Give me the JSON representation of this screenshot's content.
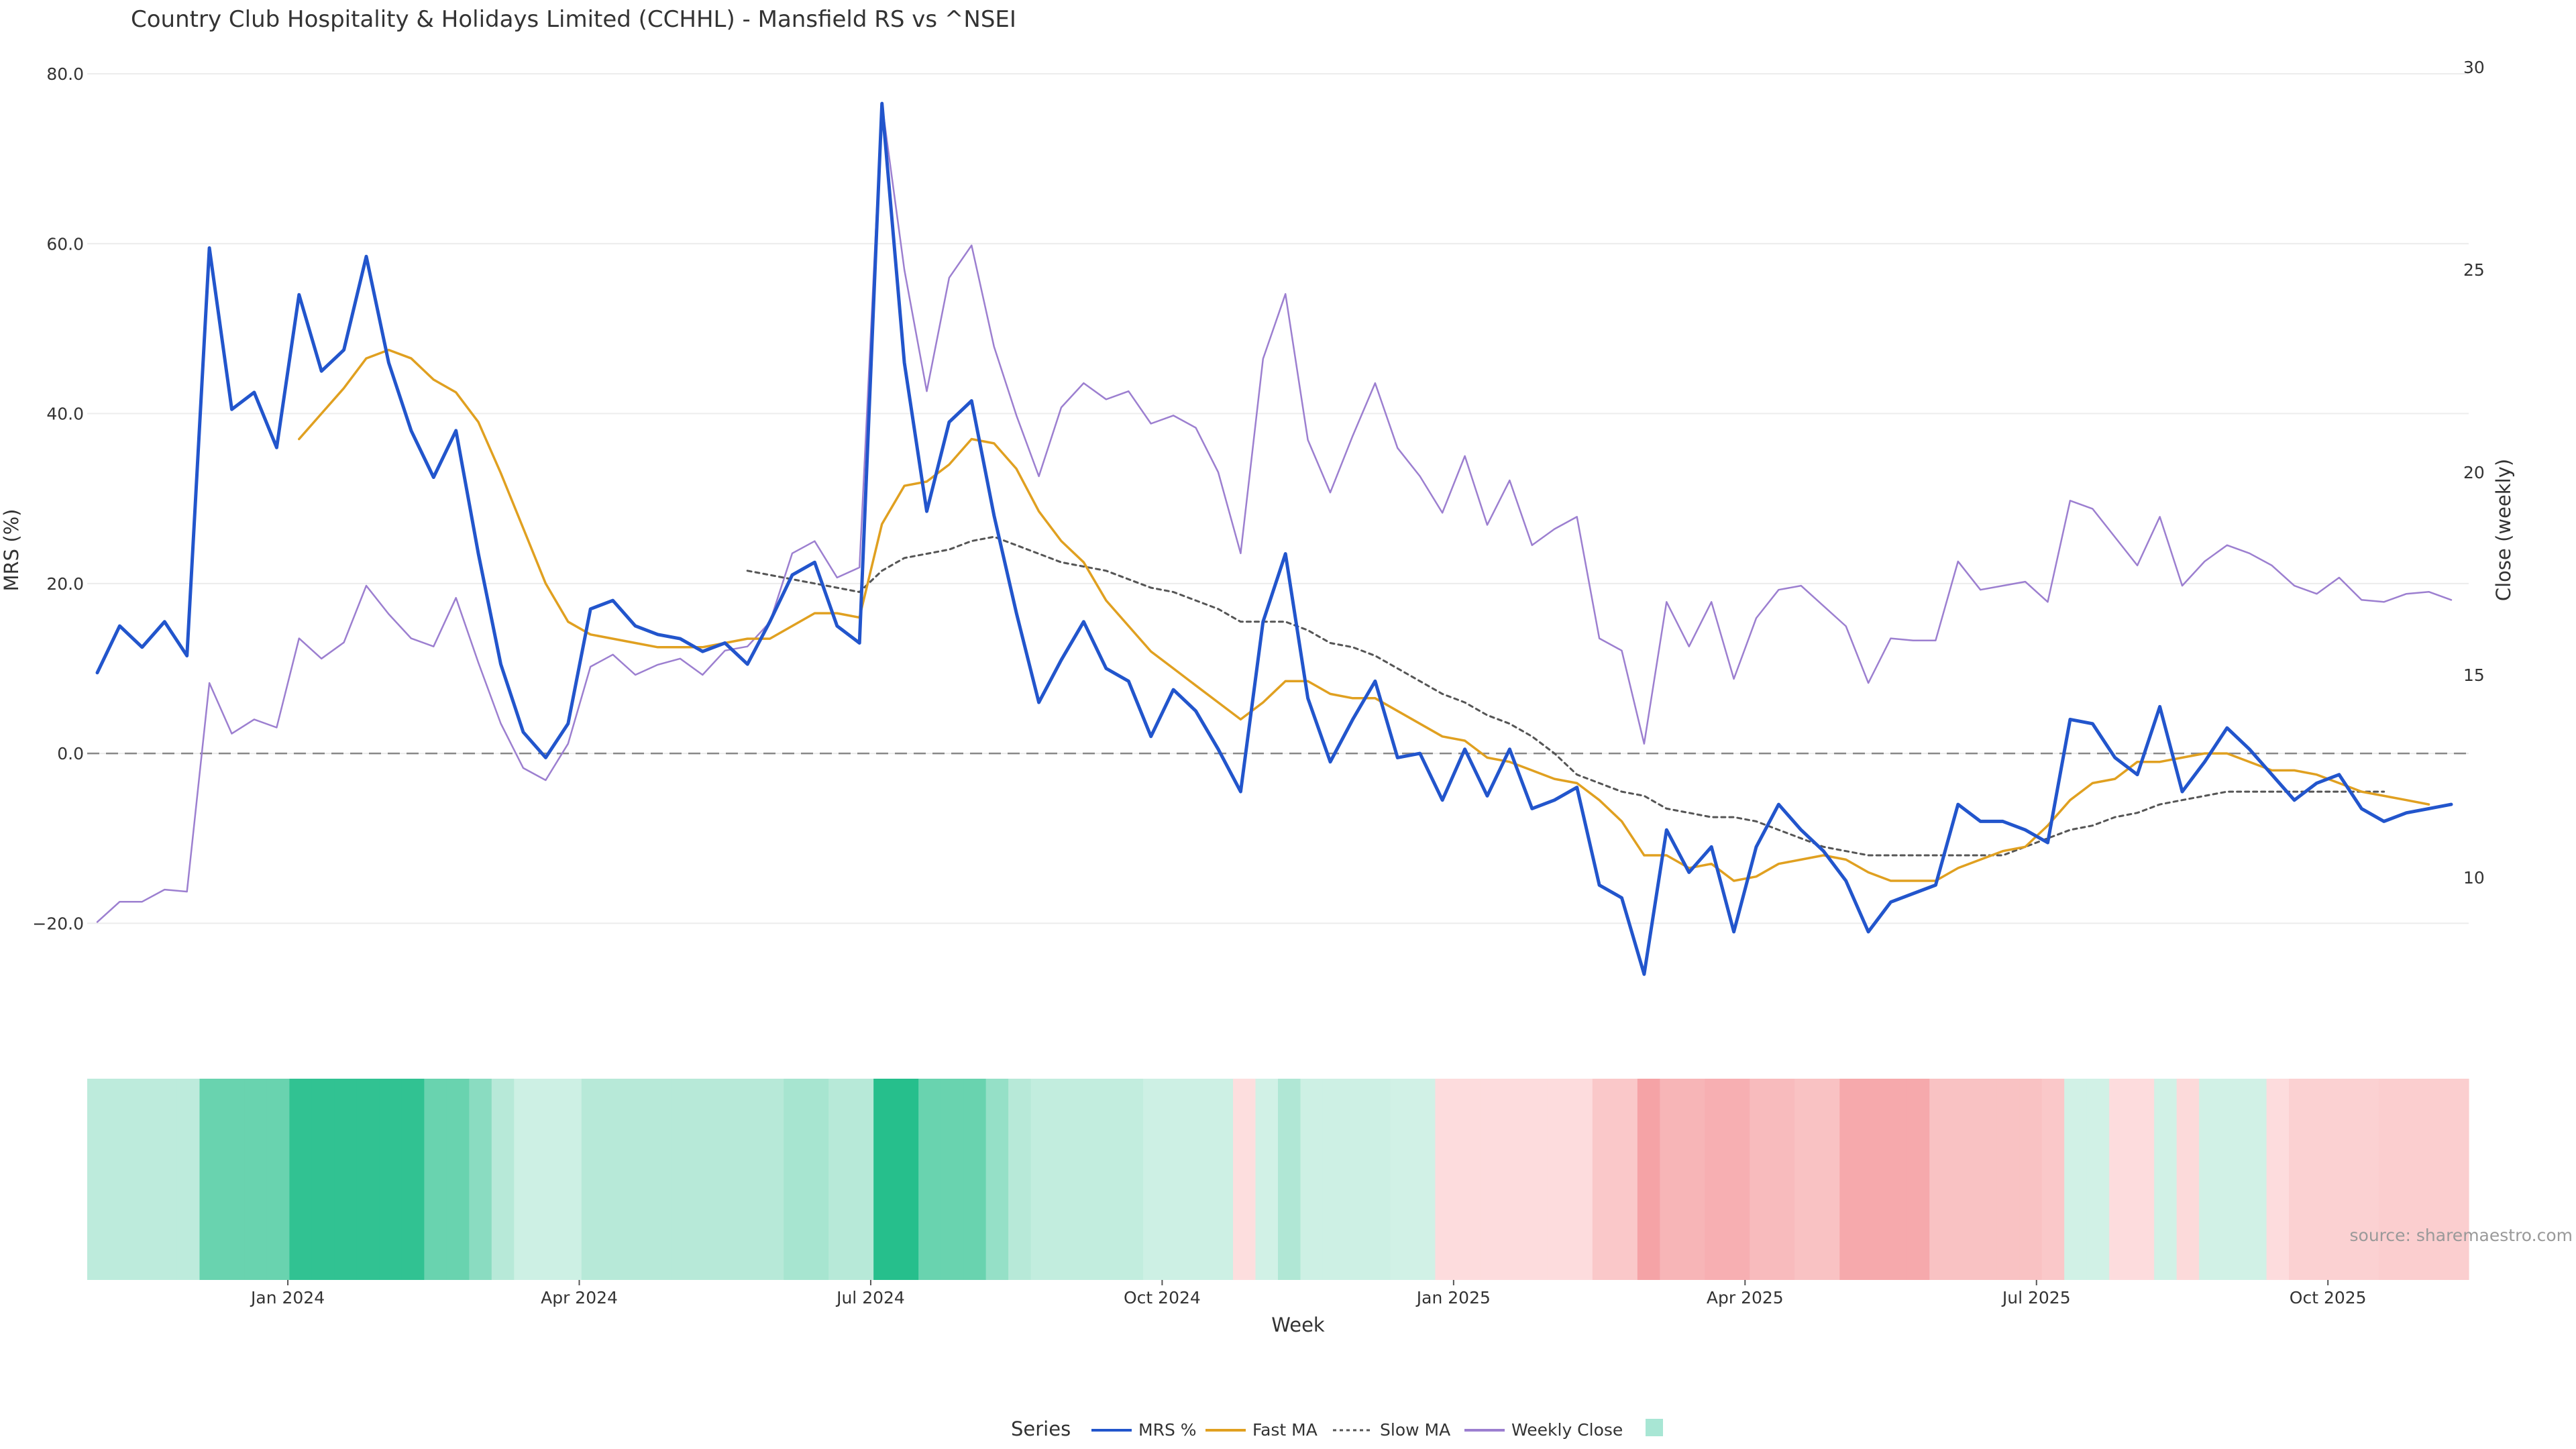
{
  "chart_data": {
    "type": "line",
    "title": "Country Club Hospitality & Holidays Limited (CCHHL) - Mansfield RS vs ^NSEI",
    "xlabel": "Week",
    "ylabel_left": "MRS (%)",
    "ylabel_right": "Close (weekly)",
    "ylim_left": [
      -27,
      80
    ],
    "ylim_right": [
      7.5,
      30
    ],
    "yticks_left": [
      "80.0",
      "60.0",
      "40.0",
      "20.0",
      "0.0",
      "−20.0"
    ],
    "yticks_left_values": [
      80,
      60,
      40,
      20,
      0,
      -20
    ],
    "yticks_right": [
      "30",
      "25",
      "20",
      "15",
      "10"
    ],
    "yticks_right_values": [
      30,
      25,
      20,
      15,
      10
    ],
    "x_tick_labels": [
      "Jan 2024",
      "Apr 2024",
      "Jul 2024",
      "Oct 2024",
      "Jan 2025",
      "Apr 2025",
      "Jul 2025",
      "Oct 2025"
    ],
    "x_tick_weeks": [
      8.5,
      21.5,
      34.5,
      47.5,
      60.5,
      73.5,
      86.5,
      99.5
    ],
    "source": "source: sharemaestro.com",
    "zero_line": 0,
    "legend": {
      "title": "Series",
      "position": "bottom",
      "items": [
        {
          "label": "MRS %",
          "style": "solid",
          "color": "#2255cc"
        },
        {
          "label": "Fast MA",
          "style": "solid",
          "color": "#e0a020"
        },
        {
          "label": "Slow MA",
          "style": "dotted",
          "color": "#555555"
        },
        {
          "label": "Weekly Close",
          "style": "solid",
          "color": "#9c7fd0"
        },
        {
          "label": "",
          "style": "swatch",
          "color": "#a8e6d4"
        }
      ]
    },
    "series": [
      {
        "name": "MRS %",
        "axis": "left",
        "color": "#2255cc",
        "start_week": 0,
        "values": [
          9.5,
          15,
          12.5,
          15.5,
          11.5,
          59.5,
          40.5,
          42.5,
          36,
          54,
          45,
          47.5,
          58.5,
          46,
          38,
          32.5,
          38,
          23.5,
          10.5,
          2.5,
          -0.5,
          3.5,
          17,
          18,
          15,
          14,
          13.5,
          12,
          13,
          10.5,
          15.5,
          21,
          22.5,
          15,
          13,
          76.5,
          46,
          28.5,
          39,
          41.5,
          28,
          16.5,
          6,
          11,
          15.5,
          10,
          8.5,
          2,
          7.5,
          5,
          0.5,
          -4.5,
          15.5,
          23.5,
          6.5,
          -1,
          4,
          8.5,
          -0.5,
          0,
          -5.5,
          0.5,
          -5,
          0.5,
          -6.5,
          -5.5,
          -4,
          -15.5,
          -17,
          -26,
          -9,
          -14,
          -11,
          -21,
          -11,
          -6,
          -9,
          -11.5,
          -15,
          -21,
          -17.5,
          -16.5,
          -15.5,
          -6,
          -8,
          -8,
          -9,
          -10.5,
          4,
          3.5,
          -0.5,
          -2.5,
          5.5,
          -4.5,
          -1,
          3,
          0.5,
          -2.5,
          -5.5,
          -3.5,
          -2.5,
          -6.5,
          -8,
          -7,
          -6.5,
          -6
        ]
      },
      {
        "name": "Fast MA",
        "axis": "left",
        "color": "#e0a020",
        "start_week": 9,
        "values": [
          37,
          40,
          43,
          46.5,
          47.5,
          46.5,
          44,
          42.5,
          39,
          33,
          26.5,
          20,
          15.5,
          14,
          13.5,
          13,
          12.5,
          12.5,
          12.5,
          13,
          13.5,
          13.5,
          15,
          16.5,
          16.5,
          16,
          27,
          31.5,
          32,
          34,
          37,
          36.5,
          33.5,
          28.5,
          25,
          22.5,
          18,
          15,
          12,
          10,
          8,
          6,
          4,
          6,
          8.5,
          8.5,
          7,
          6.5,
          6.5,
          5,
          3.5,
          2,
          1.5,
          -0.5,
          -1,
          -2,
          -3,
          -3.5,
          -5.5,
          -8,
          -12,
          -12,
          -13.5,
          -13,
          -15,
          -14.5,
          -13,
          -12.5,
          -12,
          -12.5,
          -14,
          -15,
          -15,
          -15,
          -13.5,
          -12.5,
          -11.5,
          -11,
          -8.5,
          -5.5,
          -3.5,
          -3,
          -1,
          -1,
          -0.5,
          0,
          0,
          -1,
          -2,
          -2,
          -2.5,
          -3.5,
          -4.5,
          -5,
          -5.5,
          -6
        ]
      },
      {
        "name": "Slow MA",
        "axis": "left",
        "color": "#555555",
        "start_week": 29,
        "values": [
          21.5,
          21,
          20.5,
          20,
          19.5,
          19,
          21.5,
          23,
          23.5,
          24,
          25,
          25.5,
          24.5,
          23.5,
          22.5,
          22,
          21.5,
          20.5,
          19.5,
          19,
          18,
          17,
          15.5,
          15.5,
          15.5,
          14.5,
          13,
          12.5,
          11.5,
          10,
          8.5,
          7,
          6,
          4.5,
          3.5,
          2,
          0,
          -2.5,
          -3.5,
          -4.5,
          -5,
          -6.5,
          -7,
          -7.5,
          -7.5,
          -8,
          -9,
          -10,
          -11,
          -11.5,
          -12,
          -12,
          -12,
          -12,
          -12,
          -12,
          -12,
          -11,
          -10,
          -9,
          -8.5,
          -7.5,
          -7,
          -6,
          -5.5,
          -5,
          -4.5,
          -4.5,
          -4.5,
          -4.5,
          -4.5,
          -4.5,
          -4.5,
          -4.5
        ]
      },
      {
        "name": "Weekly Close",
        "axis": "right",
        "color": "#9c7fd0",
        "start_week": 0,
        "values": [
          8.9,
          9.4,
          9.4,
          9.7,
          9.65,
          14.8,
          13.55,
          13.9,
          13.7,
          15.9,
          15.4,
          15.8,
          17.2,
          16.5,
          15.9,
          15.7,
          16.9,
          15.3,
          13.8,
          12.7,
          12.4,
          13.3,
          15.2,
          15.5,
          15.0,
          15.25,
          15.4,
          15.0,
          15.6,
          15.7,
          16.3,
          18.0,
          18.3,
          17.4,
          17.65,
          29.1,
          25.0,
          22.0,
          24.8,
          25.6,
          23.1,
          21.4,
          19.9,
          21.6,
          22.2,
          21.8,
          22.0,
          21.2,
          21.4,
          21.1,
          20.0,
          18.0,
          22.8,
          24.4,
          20.8,
          19.5,
          20.9,
          22.2,
          20.6,
          19.9,
          19.0,
          20.4,
          18.7,
          19.8,
          18.2,
          18.6,
          18.9,
          15.9,
          15.6,
          13.3,
          16.8,
          15.7,
          16.8,
          14.9,
          16.4,
          17.1,
          17.2,
          16.7,
          16.2,
          14.8,
          15.9,
          15.85,
          15.85,
          17.8,
          17.1,
          17.2,
          17.3,
          16.8,
          19.3,
          19.1,
          18.4,
          17.7,
          18.9,
          17.2,
          17.8,
          18.2,
          18.0,
          17.7,
          17.2,
          17.0,
          17.4,
          16.85,
          16.8,
          17.0,
          17.05,
          16.85
        ]
      }
    ],
    "heatmap_strip": {
      "description": "weekly MRS regime band",
      "color_scale": {
        "strong_positive": "#26bf8c",
        "weak_positive": "#d8f3ea",
        "weak_negative": "#fde0e0",
        "strong_negative": "#f5a3a6"
      },
      "values": [
        12,
        12,
        12,
        12,
        12,
        50,
        50,
        50,
        50,
        75,
        75,
        75,
        75,
        75,
        75,
        50,
        50,
        35,
        15,
        5,
        5,
        5,
        15,
        15,
        15,
        15,
        15,
        15,
        15,
        15,
        15,
        22,
        22,
        15,
        15,
        80,
        80,
        50,
        50,
        50,
        30,
        15,
        10,
        10,
        10,
        10,
        10,
        5,
        5,
        5,
        5,
        -2,
        3,
        18,
        5,
        5,
        5,
        5,
        3,
        3,
        -3,
        -3,
        -3,
        -3,
        -3,
        -3,
        -3,
        -20,
        -20,
        -50,
        -35,
        -35,
        -40,
        -40,
        -30,
        -30,
        -25,
        -25,
        -45,
        -45,
        -45,
        -45,
        -25,
        -25,
        -25,
        -25,
        -25,
        -20,
        3,
        3,
        -3,
        -3,
        3,
        -5,
        3,
        3,
        3,
        -3,
        -12,
        -12,
        -12,
        -12,
        -15,
        -15,
        -15,
        -15
      ]
    }
  }
}
